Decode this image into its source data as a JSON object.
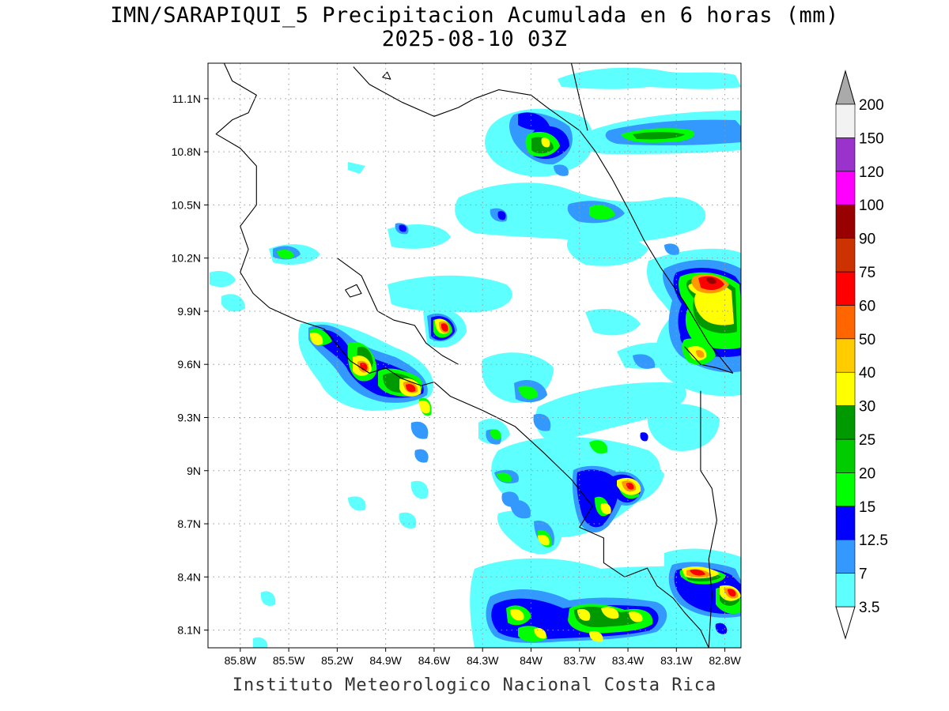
{
  "title": {
    "line1": "IMN/SARAPIQUI_5 Precipitacion Acumulada en 6 horas (mm)",
    "line2": "2025-08-10 03Z"
  },
  "footer": "Instituto Meteorologico Nacional Costa Rica",
  "map": {
    "lon_range": [
      -86.0,
      -82.7
    ],
    "lat_range": [
      8.0,
      11.3
    ],
    "grid": true,
    "lat_ticks": [
      {
        "value": 11.1,
        "label": "11.1N"
      },
      {
        "value": 10.8,
        "label": "10.8N"
      },
      {
        "value": 10.5,
        "label": "10.5N"
      },
      {
        "value": 10.2,
        "label": "10.2N"
      },
      {
        "value": 9.9,
        "label": "9.9N"
      },
      {
        "value": 9.6,
        "label": "9.6N"
      },
      {
        "value": 9.3,
        "label": "9.3N"
      },
      {
        "value": 9.0,
        "label": "9N"
      },
      {
        "value": 8.7,
        "label": "8.7N"
      },
      {
        "value": 8.4,
        "label": "8.4N"
      },
      {
        "value": 8.1,
        "label": "8.1N"
      }
    ],
    "lon_ticks": [
      {
        "value": -85.8,
        "label": "85.8W"
      },
      {
        "value": -85.5,
        "label": "85.5W"
      },
      {
        "value": -85.2,
        "label": "85.2W"
      },
      {
        "value": -84.9,
        "label": "84.9W"
      },
      {
        "value": -84.6,
        "label": "84.6W"
      },
      {
        "value": -84.3,
        "label": "84.3W"
      },
      {
        "value": -84.0,
        "label": "84W"
      },
      {
        "value": -83.7,
        "label": "83.7W"
      },
      {
        "value": -83.4,
        "label": "83.4W"
      },
      {
        "value": -83.1,
        "label": "83.1W"
      },
      {
        "value": -82.8,
        "label": "82.8W"
      }
    ],
    "coastlines": [
      [
        [
          -85.9,
          11.3
        ],
        [
          -85.85,
          11.2
        ],
        [
          -85.7,
          11.12
        ],
        [
          -85.75,
          11.02
        ],
        [
          -85.85,
          10.98
        ],
        [
          -85.95,
          10.9
        ],
        [
          -85.8,
          10.82
        ],
        [
          -85.7,
          10.72
        ],
        [
          -85.7,
          10.5
        ],
        [
          -85.8,
          10.38
        ],
        [
          -85.75,
          10.25
        ],
        [
          -85.8,
          10.12
        ],
        [
          -85.72,
          10.0
        ],
        [
          -85.62,
          9.92
        ],
        [
          -85.45,
          9.85
        ],
        [
          -85.28,
          9.8
        ],
        [
          -85.12,
          9.62
        ],
        [
          -85.0,
          9.55
        ],
        [
          -84.9,
          9.58
        ],
        [
          -84.8,
          9.52
        ],
        [
          -84.68,
          9.48
        ],
        [
          -84.6,
          9.5
        ],
        [
          -84.5,
          9.42
        ],
        [
          -84.3,
          9.34
        ],
        [
          -84.1,
          9.25
        ],
        [
          -83.92,
          9.1
        ],
        [
          -83.75,
          8.95
        ],
        [
          -83.62,
          8.8
        ],
        [
          -83.7,
          8.68
        ],
        [
          -83.55,
          8.62
        ],
        [
          -83.55,
          8.48
        ],
        [
          -83.42,
          8.4
        ],
        [
          -83.28,
          8.45
        ],
        [
          -83.22,
          8.35
        ],
        [
          -83.12,
          8.28
        ],
        [
          -83.05,
          8.2
        ],
        [
          -82.95,
          8.1
        ],
        [
          -82.9,
          8.0
        ]
      ],
      [
        [
          -85.2,
          10.2
        ],
        [
          -85.05,
          10.1
        ],
        [
          -84.95,
          9.9
        ],
        [
          -84.85,
          9.85
        ],
        [
          -84.72,
          9.82
        ],
        [
          -84.65,
          9.72
        ],
        [
          -84.55,
          9.65
        ],
        [
          -84.45,
          9.6
        ]
      ],
      [
        [
          -85.1,
          11.28
        ],
        [
          -85.0,
          11.18
        ],
        [
          -84.8,
          11.08
        ],
        [
          -84.6,
          11.0
        ],
        [
          -84.45,
          11.05
        ],
        [
          -84.35,
          11.1
        ],
        [
          -84.2,
          11.15
        ],
        [
          -84.0,
          11.12
        ],
        [
          -83.9,
          11.05
        ],
        [
          -83.7,
          10.92
        ],
        [
          -83.6,
          10.8
        ],
        [
          -83.5,
          10.65
        ],
        [
          -83.4,
          10.48
        ],
        [
          -83.3,
          10.3
        ],
        [
          -83.2,
          10.15
        ],
        [
          -83.05,
          9.95
        ],
        [
          -82.9,
          9.72
        ],
        [
          -82.75,
          9.55
        ]
      ]
    ],
    "borders": [
      [
        [
          -83.75,
          11.3
        ],
        [
          -83.7,
          11.1
        ],
        [
          -83.65,
          10.92
        ]
      ],
      [
        [
          -83.05,
          9.7
        ],
        [
          -82.95,
          9.6
        ],
        [
          -82.85,
          9.58
        ],
        [
          -82.75,
          9.55
        ]
      ],
      [
        [
          -82.95,
          9.45
        ],
        [
          -82.95,
          9.25
        ],
        [
          -82.95,
          9.0
        ],
        [
          -82.88,
          8.9
        ],
        [
          -82.85,
          8.72
        ],
        [
          -82.9,
          8.5
        ],
        [
          -82.88,
          8.3
        ],
        [
          -82.9,
          8.0
        ]
      ]
    ],
    "lakes": [
      [
        [
          -85.15,
          10.02
        ],
        [
          -85.08,
          10.05
        ],
        [
          -85.05,
          10.0
        ],
        [
          -85.12,
          9.98
        ],
        [
          -85.15,
          10.02
        ]
      ],
      [
        [
          -84.92,
          11.22
        ],
        [
          -84.89,
          11.25
        ],
        [
          -84.87,
          11.21
        ],
        [
          -84.92,
          11.22
        ]
      ]
    ]
  },
  "chart_data": {
    "type": "heatmap",
    "variable": "Precipitacion Acumulada en 6 horas (mm)",
    "levels": [
      3.5,
      7,
      12.5,
      15,
      20,
      25,
      30,
      40,
      50,
      60,
      75,
      90,
      100,
      120,
      150,
      200
    ],
    "level_colors": [
      "#5effff",
      "#3399ff",
      "#0000ff",
      "#00ff00",
      "#00cc00",
      "#009900",
      "#ffff00",
      "#ffcc00",
      "#ff6600",
      "#ff0000",
      "#cc3300",
      "#990000",
      "#ff00ff",
      "#9933cc",
      "#f2f2f2",
      "#aaaaaa"
    ],
    "cells": [
      {
        "lon": -83.7,
        "lat": 10.88,
        "max_mm": 25
      },
      {
        "lon": -83.1,
        "lat": 10.9,
        "max_mm": 25
      },
      {
        "lon": -83.4,
        "lat": 10.45,
        "max_mm": 20
      },
      {
        "lon": -83.85,
        "lat": 10.96,
        "max_mm": 15
      },
      {
        "lon": -82.85,
        "lat": 10.05,
        "max_mm": 75
      },
      {
        "lon": -82.95,
        "lat": 9.65,
        "max_mm": 40
      },
      {
        "lon": -84.45,
        "lat": 9.8,
        "max_mm": 60
      },
      {
        "lon": -85.2,
        "lat": 9.75,
        "max_mm": 40
      },
      {
        "lon": -85.0,
        "lat": 9.58,
        "max_mm": 60
      },
      {
        "lon": -84.75,
        "lat": 9.45,
        "max_mm": 60
      },
      {
        "lon": -84.6,
        "lat": 9.35,
        "max_mm": 50
      },
      {
        "lon": -83.25,
        "lat": 8.9,
        "max_mm": 50
      },
      {
        "lon": -83.7,
        "lat": 8.6,
        "max_mm": 40
      },
      {
        "lon": -82.9,
        "lat": 8.42,
        "max_mm": 60
      },
      {
        "lon": -82.75,
        "lat": 8.3,
        "max_mm": 60
      },
      {
        "lon": -83.9,
        "lat": 8.22,
        "max_mm": 40
      },
      {
        "lon": -83.55,
        "lat": 8.18,
        "max_mm": 40
      },
      {
        "lon": -83.25,
        "lat": 8.15,
        "max_mm": 40
      }
    ]
  }
}
